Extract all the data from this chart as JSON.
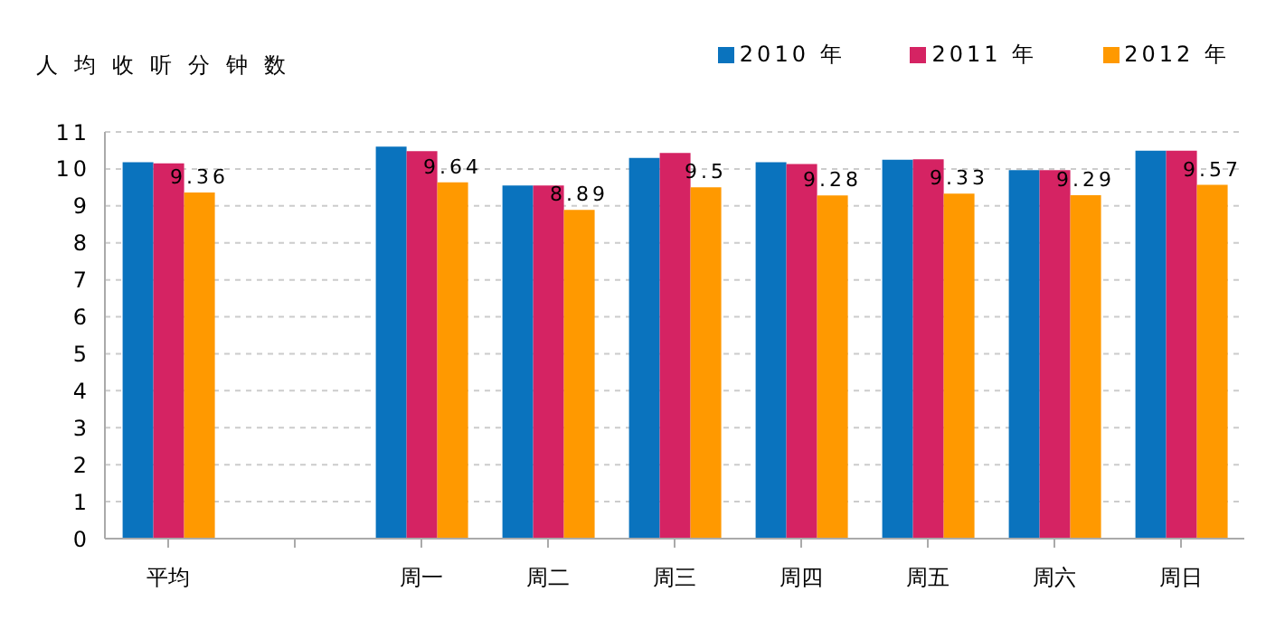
{
  "chart_data": {
    "type": "bar",
    "title": "人均收听分钟数",
    "categories": [
      "平均",
      null,
      "周一",
      "周二",
      "周三",
      "周四",
      "周五",
      "周六",
      "周日"
    ],
    "series": [
      {
        "name": "2010 年",
        "color": "#0a73be",
        "values": [
          10.18,
          null,
          10.6,
          9.55,
          10.3,
          10.18,
          10.25,
          9.97,
          10.49
        ]
      },
      {
        "name": "2011 年",
        "color": "#d52363",
        "values": [
          10.15,
          null,
          10.48,
          9.55,
          10.43,
          10.13,
          10.26,
          9.97,
          10.49
        ]
      },
      {
        "name": "2012 年",
        "color": "#ff9900",
        "values": [
          9.36,
          null,
          9.64,
          8.89,
          9.5,
          9.28,
          9.33,
          9.29,
          9.57
        ],
        "value_labels": [
          "9.36",
          null,
          "9.64",
          "8.89",
          "9.5",
          "9.28",
          "9.33",
          "9.29",
          "9.57"
        ]
      }
    ],
    "ylim": [
      0,
      11
    ],
    "yticks": [
      0,
      1,
      2,
      3,
      4,
      5,
      6,
      7,
      8,
      9,
      10,
      11
    ],
    "grid": "y",
    "legend": "top right"
  }
}
